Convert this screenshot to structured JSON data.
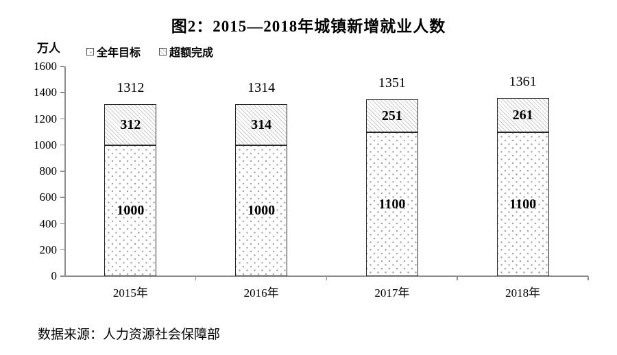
{
  "title": "图2：2015—2018年城镇新增就业人数",
  "y_axis_unit": "万人",
  "legend": [
    {
      "label": "全年目标",
      "pattern": "dots"
    },
    {
      "label": "超额完成",
      "pattern": "diagonal-hatch"
    }
  ],
  "source": "数据来源：人力资源社会保障部",
  "colors": {
    "axis": "#8c8c8c",
    "bar_border": "#262626",
    "dot_pattern": "#9d9d9d",
    "hatch_pattern": "#c9c9c9",
    "text": "#000000"
  },
  "chart_data": {
    "type": "bar",
    "stacked": true,
    "title": "图2：2015—2018年城镇新增就业人数",
    "ylabel": "万人",
    "xlabel": "",
    "categories": [
      "2015年",
      "2016年",
      "2017年",
      "2018年"
    ],
    "series": [
      {
        "name": "全年目标",
        "pattern": "dots",
        "values": [
          1000,
          1000,
          1100,
          1100
        ]
      },
      {
        "name": "超额完成",
        "pattern": "diagonal-hatch",
        "values": [
          312,
          314,
          251,
          261
        ]
      }
    ],
    "totals": [
      1312,
      1314,
      1351,
      1361
    ],
    "ylim": [
      0,
      1600
    ],
    "y_ticks": [
      0,
      200,
      400,
      600,
      800,
      1000,
      1200,
      1400,
      1600
    ],
    "grid": false,
    "legend_position": "top-left"
  }
}
